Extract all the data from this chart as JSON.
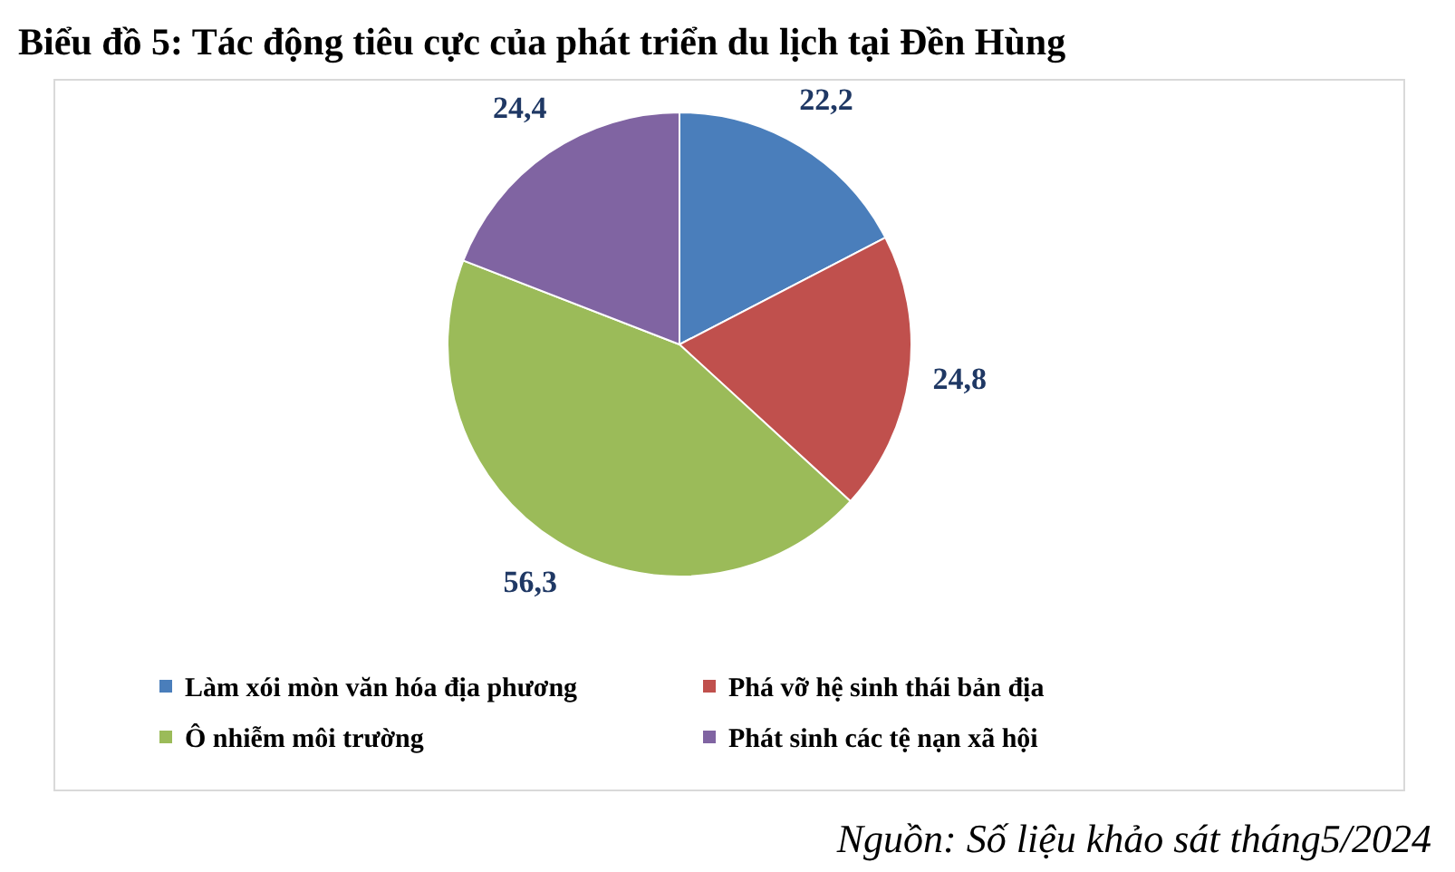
{
  "chart_data": {
    "type": "pie",
    "title": "Biểu đồ 5: Tác động tiêu cực của phát triển du lịch tại Đền Hùng",
    "categories": [
      "Làm xói mòn văn hóa địa phương",
      "Phá vỡ hệ sinh thái bản địa",
      "Ô nhiễm môi trường",
      "Phát sinh các tệ nạn xã hội"
    ],
    "values": [
      22.2,
      24.8,
      56.3,
      24.4
    ],
    "value_labels": [
      "22,2",
      "24,8",
      "56,3",
      "24,4"
    ],
    "colors": [
      "#4a7ebb",
      "#c0504d",
      "#9bbb59",
      "#8064a2"
    ],
    "legend": "bottom",
    "annotations": [
      "Nguồn: Số liệu khảo sát tháng5/2024"
    ]
  }
}
